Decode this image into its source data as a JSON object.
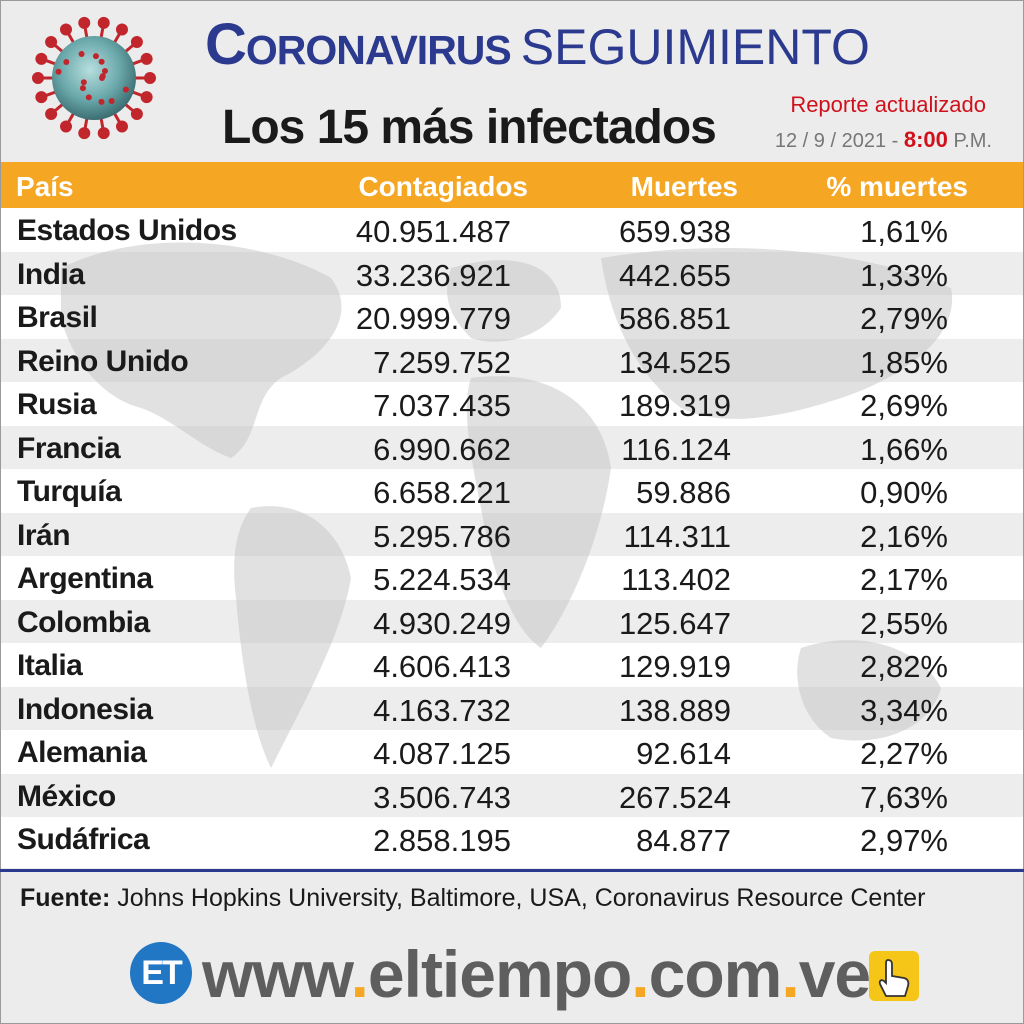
{
  "header": {
    "title_primary": "Coronavirus",
    "title_secondary": "SEGUIMIENTO",
    "subtitle_prefix": "Los",
    "subtitle_number": "15",
    "subtitle_suffix": "más infectados",
    "report_label": "Reporte actualizado",
    "report_date": "12 / 9 / 2021 -",
    "report_time": "8:00",
    "report_ampm": "P.M."
  },
  "chart_data": {
    "type": "table",
    "columns": [
      "País",
      "Contagiados",
      "Muertes",
      "% muertes"
    ],
    "rows": [
      [
        "Estados Unidos",
        "40.951.487",
        "659.938",
        "1,61%"
      ],
      [
        "India",
        "33.236.921",
        "442.655",
        "1,33%"
      ],
      [
        "Brasil",
        "20.999.779",
        "586.851",
        "2,79%"
      ],
      [
        "Reino Unido",
        "7.259.752",
        "134.525",
        "1,85%"
      ],
      [
        "Rusia",
        "7.037.435",
        "189.319",
        "2,69%"
      ],
      [
        "Francia",
        "6.990.662",
        "116.124",
        "1,66%"
      ],
      [
        "Turquía",
        "6.658.221",
        "59.886",
        "0,90%"
      ],
      [
        "Irán",
        "5.295.786",
        "114.311",
        "2,16%"
      ],
      [
        "Argentina",
        "5.224.534",
        "113.402",
        "2,17%"
      ],
      [
        "Colombia",
        "4.930.249",
        "125.647",
        "2,55%"
      ],
      [
        "Italia",
        "4.606.413",
        "129.919",
        "2,82%"
      ],
      [
        "Indonesia",
        "4.163.732",
        "138.889",
        "3,34%"
      ],
      [
        "Alemania",
        "4.087.125",
        "92.614",
        "2,27%"
      ],
      [
        "México",
        "3.506.743",
        "267.524",
        "7,63%"
      ],
      [
        "Sudáfrica",
        "2.858.195",
        "84.877",
        "2,97%"
      ]
    ]
  },
  "footer": {
    "source_label": "Fuente:",
    "source_text": "Johns Hopkins University, Baltimore, USA, Coronavirus Resource Center",
    "logo_text": "ET",
    "site_parts": [
      "www",
      ".",
      "eltiempo",
      ".",
      "com",
      ".",
      "ve"
    ]
  },
  "colors": {
    "header_bar": "#f5a623",
    "title_blue": "#2b3a8f",
    "report_red": "#d0111b",
    "logo_blue": "#2277c4"
  },
  "icons": {
    "virus": "coronavirus-icon",
    "hand": "pointing-hand-icon"
  }
}
